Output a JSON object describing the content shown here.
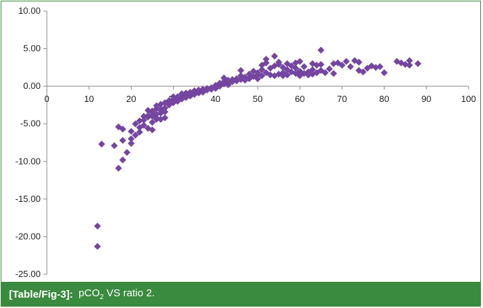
{
  "caption": {
    "ref": "[Table/Fig-3]:",
    "text_before": "pCO",
    "subscript": "2",
    "text_after": " VS ratio 2."
  },
  "colors": {
    "marker": "#7446a0",
    "frame": "#3a8a3f",
    "caption_bg": "#3a8a3f",
    "axis": "#888888"
  },
  "chart_data": {
    "type": "scatter",
    "title": "",
    "xlabel": "",
    "ylabel": "",
    "xlim": [
      0,
      100
    ],
    "ylim": [
      -25,
      10
    ],
    "x_ticks": [
      "0",
      "10",
      "20",
      "30",
      "40",
      "50",
      "60",
      "70",
      "80",
      "90",
      "100"
    ],
    "y_ticks": [
      "10.00",
      "5.00",
      "0.00",
      "-5.00",
      "-10.00",
      "-15.00",
      "-20.00",
      "-25.00"
    ],
    "grid": false,
    "legend": "none",
    "marker": "diamond",
    "points": [
      [
        12,
        -18.6
      ],
      [
        12,
        -21.3
      ],
      [
        13,
        -7.7
      ],
      [
        16,
        -7.9
      ],
      [
        17,
        -5.4
      ],
      [
        17,
        -10.9
      ],
      [
        18,
        -5.7
      ],
      [
        18,
        -7.2
      ],
      [
        18,
        -9.8
      ],
      [
        19,
        -8.8
      ],
      [
        20,
        -6.0
      ],
      [
        20,
        -7.6
      ],
      [
        20,
        -7.0
      ],
      [
        21,
        -6.5
      ],
      [
        21,
        -5.0
      ],
      [
        22,
        -6.1
      ],
      [
        22,
        -5.5
      ],
      [
        22,
        -4.6
      ],
      [
        23,
        -4.0
      ],
      [
        23,
        -5.2
      ],
      [
        23,
        -4.5
      ],
      [
        24,
        -3.2
      ],
      [
        24,
        -4.1
      ],
      [
        24,
        -3.9
      ],
      [
        24,
        -5.6
      ],
      [
        25,
        -3.5
      ],
      [
        25,
        -3.3
      ],
      [
        25,
        -4.0
      ],
      [
        25,
        -5.8
      ],
      [
        25,
        -4.8
      ],
      [
        26,
        -3.0
      ],
      [
        26,
        -3.7
      ],
      [
        26,
        -2.6
      ],
      [
        26,
        -4.2
      ],
      [
        26,
        -4.4
      ],
      [
        27,
        -2.4
      ],
      [
        27,
        -3.2
      ],
      [
        27,
        -3.0
      ],
      [
        27,
        -3.6
      ],
      [
        27,
        -4.4
      ],
      [
        28,
        -2.2
      ],
      [
        28,
        -2.9
      ],
      [
        28,
        -3.4
      ],
      [
        28,
        -4.2
      ],
      [
        29,
        -1.9
      ],
      [
        29,
        -2.5
      ],
      [
        29,
        -2.1
      ],
      [
        30,
        -1.4
      ],
      [
        30,
        -1.9
      ],
      [
        30,
        -2.2
      ],
      [
        31,
        -1.4
      ],
      [
        31,
        -1.7
      ],
      [
        31,
        -2.0
      ],
      [
        32,
        -1.0
      ],
      [
        32,
        -1.3
      ],
      [
        32,
        -1.7
      ],
      [
        33,
        -0.9
      ],
      [
        33,
        -1.2
      ],
      [
        33,
        -1.5
      ],
      [
        34,
        -0.8
      ],
      [
        34,
        -1.0
      ],
      [
        34,
        -1.3
      ],
      [
        35,
        -0.6
      ],
      [
        35,
        -0.9
      ],
      [
        35,
        -1.1
      ],
      [
        36,
        -0.5
      ],
      [
        36,
        -0.7
      ],
      [
        36,
        -0.9
      ],
      [
        37,
        -0.4
      ],
      [
        37,
        -0.6
      ],
      [
        37,
        -0.8
      ],
      [
        38,
        -0.3
      ],
      [
        38,
        -0.5
      ],
      [
        39,
        -0.2
      ],
      [
        39,
        -0.4
      ],
      [
        40,
        -0.1
      ],
      [
        40,
        0.1
      ],
      [
        40,
        -0.3
      ],
      [
        41,
        0.2
      ],
      [
        41,
        0.0
      ],
      [
        41,
        0.4
      ],
      [
        42,
        0.3
      ],
      [
        42,
        0.6
      ],
      [
        42,
        1.1
      ],
      [
        43,
        0.5
      ],
      [
        43,
        0.8
      ],
      [
        43,
        0.2
      ],
      [
        44,
        0.6
      ],
      [
        44,
        0.9
      ],
      [
        45,
        0.7
      ],
      [
        45,
        1.0
      ],
      [
        46,
        0.9
      ],
      [
        46,
        1.4
      ],
      [
        46,
        2.1
      ],
      [
        47,
        1.2
      ],
      [
        47,
        0.8
      ],
      [
        48,
        1.6
      ],
      [
        48,
        1.0
      ],
      [
        49,
        2.0
      ],
      [
        49,
        1.3
      ],
      [
        50,
        1.8
      ],
      [
        50,
        1.5
      ],
      [
        50,
        1.0
      ],
      [
        51,
        2.2
      ],
      [
        51,
        1.4
      ],
      [
        51,
        2.8
      ],
      [
        52,
        1.8
      ],
      [
        52,
        3.1
      ],
      [
        52,
        3.6
      ],
      [
        53,
        2.4
      ],
      [
        53,
        1.5
      ],
      [
        54,
        2.7
      ],
      [
        54,
        4.0
      ],
      [
        54,
        1.4
      ],
      [
        55,
        3.2
      ],
      [
        55,
        2.9
      ],
      [
        55,
        1.6
      ],
      [
        56,
        2.5
      ],
      [
        56,
        1.8
      ],
      [
        56,
        1.4
      ],
      [
        57,
        3.0
      ],
      [
        57,
        2.2
      ],
      [
        57,
        1.5
      ],
      [
        58,
        1.9
      ],
      [
        58,
        2.7
      ],
      [
        59,
        3.1
      ],
      [
        59,
        2.4
      ],
      [
        59,
        1.7
      ],
      [
        60,
        3.3
      ],
      [
        60,
        2.0
      ],
      [
        60,
        1.4
      ],
      [
        61,
        2.6
      ],
      [
        61,
        1.7
      ],
      [
        62,
        1.9
      ],
      [
        62,
        1.5
      ],
      [
        63,
        2.2
      ],
      [
        63,
        1.6
      ],
      [
        63,
        3.0
      ],
      [
        64,
        2.8
      ],
      [
        64,
        1.8
      ],
      [
        65,
        4.8
      ],
      [
        65,
        2.9
      ],
      [
        65,
        2.1
      ],
      [
        66,
        1.8
      ],
      [
        67,
        2.3
      ],
      [
        68,
        3.0
      ],
      [
        68,
        1.7
      ],
      [
        69,
        3.1
      ],
      [
        70,
        2.8
      ],
      [
        71,
        3.3
      ],
      [
        72,
        2.6
      ],
      [
        73,
        3.4
      ],
      [
        74,
        3.2
      ],
      [
        74,
        2.1
      ],
      [
        75,
        1.9
      ],
      [
        76,
        2.4
      ],
      [
        77,
        2.7
      ],
      [
        78,
        2.5
      ],
      [
        79,
        2.6
      ],
      [
        80,
        1.8
      ],
      [
        83,
        3.3
      ],
      [
        84,
        3.1
      ],
      [
        85,
        2.9
      ],
      [
        86,
        3.4
      ],
      [
        86,
        2.8
      ],
      [
        88,
        3.0
      ]
    ]
  }
}
